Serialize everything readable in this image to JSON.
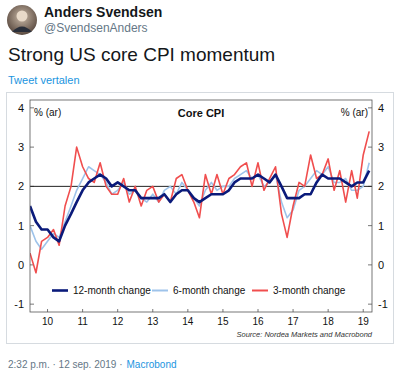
{
  "tweet": {
    "author": "Anders Svendsen",
    "handle": "@SvendsenAnders",
    "text": "Strong US core CPI momentum",
    "translate": "Tweet vertalen",
    "time": "2:32 p.m. · 12 sep. 2019 ·",
    "source_app": "Macrobond"
  },
  "chart_data": {
    "type": "line",
    "title": "Core CPI",
    "ylabel": "% (ar)",
    "source": "Source: Nordea Markets and Macrobond",
    "x": [
      2010,
      2010.17,
      2010.33,
      2010.5,
      2010.67,
      2010.83,
      2011,
      2011.17,
      2011.33,
      2011.5,
      2011.67,
      2011.83,
      2012,
      2012.17,
      2012.33,
      2012.5,
      2012.67,
      2012.83,
      2013,
      2013.17,
      2013.33,
      2013.5,
      2013.67,
      2013.83,
      2014,
      2014.17,
      2014.33,
      2014.5,
      2014.67,
      2014.83,
      2015,
      2015.17,
      2015.33,
      2015.5,
      2015.67,
      2015.83,
      2016,
      2016.17,
      2016.33,
      2016.5,
      2016.67,
      2016.83,
      2017,
      2017.17,
      2017.33,
      2017.5,
      2017.67,
      2017.83,
      2018,
      2018.17,
      2018.33,
      2018.5,
      2018.67,
      2018.83,
      2019,
      2019.17,
      2019.33,
      2019.5,
      2019.67
    ],
    "series": [
      {
        "name": "6-month change",
        "color": "#9ec3ea",
        "line_style": "solid",
        "values": [
          1.0,
          0.6,
          0.4,
          0.6,
          0.8,
          0.7,
          1.1,
          1.5,
          1.9,
          2.2,
          2.5,
          2.4,
          2.3,
          2.1,
          1.8,
          1.9,
          2.1,
          1.8,
          1.9,
          1.7,
          1.6,
          1.8,
          1.6,
          1.9,
          2.0,
          1.8,
          2.1,
          1.9,
          1.7,
          1.5,
          1.9,
          2.1,
          1.9,
          2.0,
          2.0,
          2.2,
          2.3,
          2.4,
          2.2,
          2.3,
          2.0,
          2.1,
          2.3,
          1.6,
          1.2,
          1.4,
          1.9,
          2.0,
          2.2,
          2.4,
          2.3,
          2.5,
          2.1,
          2.1,
          2.2,
          1.9,
          1.9,
          2.0,
          2.6
        ]
      },
      {
        "name": "3-month change",
        "color": "#f04e4e",
        "line_style": "solid",
        "values": [
          0.3,
          -0.2,
          0.6,
          0.7,
          0.9,
          0.5,
          1.5,
          2.0,
          3.0,
          2.5,
          2.2,
          2.1,
          2.6,
          2.0,
          1.8,
          1.8,
          2.2,
          1.6,
          2.0,
          1.5,
          1.9,
          2.0,
          1.6,
          1.8,
          1.6,
          2.2,
          2.3,
          1.9,
          1.6,
          1.2,
          2.3,
          1.8,
          2.3,
          1.8,
          2.2,
          2.3,
          2.5,
          2.6,
          2.0,
          2.6,
          1.9,
          2.2,
          2.5,
          1.3,
          0.7,
          1.5,
          2.1,
          2.0,
          2.8,
          2.2,
          2.3,
          2.7,
          1.9,
          2.4,
          1.6,
          2.4,
          1.7,
          2.8,
          3.4
        ]
      },
      {
        "name": "12-month change",
        "color": "#0a1a7a",
        "line_style": "solid",
        "values": [
          1.5,
          1.1,
          0.9,
          0.9,
          0.7,
          0.6,
          1.0,
          1.3,
          1.6,
          1.9,
          2.1,
          2.2,
          2.3,
          2.2,
          2.0,
          2.1,
          2.0,
          1.9,
          1.9,
          1.7,
          1.7,
          1.7,
          1.7,
          1.8,
          1.6,
          1.8,
          1.9,
          1.9,
          1.7,
          1.6,
          1.7,
          1.8,
          1.8,
          1.8,
          1.9,
          2.1,
          2.2,
          2.2,
          2.2,
          2.3,
          2.2,
          2.1,
          2.3,
          2.0,
          1.7,
          1.7,
          1.7,
          1.8,
          1.8,
          2.1,
          2.3,
          2.2,
          2.2,
          2.2,
          2.1,
          2.0,
          2.1,
          2.1,
          2.4
        ]
      }
    ],
    "legend_order": [
      "12-month change",
      "6-month change",
      "3-month change"
    ],
    "xlim": [
      2010,
      2019.75
    ],
    "xticks": [
      {
        "value": 2010.5,
        "label": "10"
      },
      {
        "value": 2011.5,
        "label": "11"
      },
      {
        "value": 2012.5,
        "label": "12"
      },
      {
        "value": 2013.5,
        "label": "13"
      },
      {
        "value": 2014.5,
        "label": "14"
      },
      {
        "value": 2015.5,
        "label": "15"
      },
      {
        "value": 2016.5,
        "label": "16"
      },
      {
        "value": 2017.5,
        "label": "17"
      },
      {
        "value": 2018.5,
        "label": "18"
      },
      {
        "value": 2019.5,
        "label": "19"
      }
    ],
    "ylim": [
      -1.2,
      4.2
    ],
    "yticks": [
      -1,
      0,
      1,
      2,
      3,
      4
    ],
    "hline": 2,
    "grid": false,
    "legend": "bottom"
  }
}
